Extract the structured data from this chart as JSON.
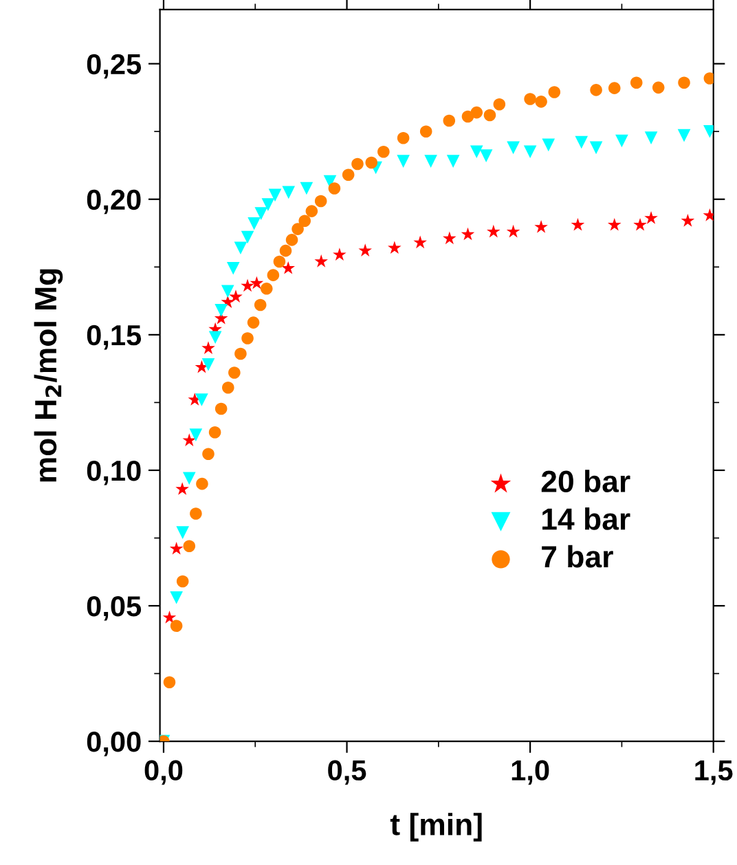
{
  "chart_data": {
    "type": "scatter",
    "xlabel": "t [min]",
    "ylabel": "mol H$_{2}$/mol Mg",
    "xlim": [
      -0.01,
      1.5
    ],
    "ylim": [
      0,
      0.27
    ],
    "xticks": [
      {
        "value": 0,
        "label": "0,0"
      },
      {
        "value": 0.5,
        "label": "0,5"
      },
      {
        "value": 1.0,
        "label": "1,0"
      },
      {
        "value": 1.5,
        "label": "1,5"
      }
    ],
    "yticks": [
      {
        "value": 0,
        "label": "0,00"
      },
      {
        "value": 0.05,
        "label": "0,05"
      },
      {
        "value": 0.1,
        "label": "0,10"
      },
      {
        "value": 0.15,
        "label": "0,15"
      },
      {
        "value": 0.2,
        "label": "0,20"
      },
      {
        "value": 0.25,
        "label": "0,25"
      }
    ],
    "grid": false,
    "legend": "right",
    "series": [
      {
        "name": "20 bar",
        "color": "#ff0000",
        "marker": "star",
        "x": [
          0.016,
          0.035,
          0.051,
          0.07,
          0.085,
          0.104,
          0.122,
          0.141,
          0.157,
          0.175,
          0.197,
          0.229,
          0.254,
          0.3,
          0.34,
          0.43,
          0.48,
          0.55,
          0.63,
          0.7,
          0.78,
          0.83,
          0.9,
          0.954,
          1.03,
          1.13,
          1.23,
          1.3,
          1.33,
          1.43,
          1.49
        ],
        "values": [
          0.0456,
          0.071,
          0.093,
          0.111,
          0.126,
          0.138,
          0.145,
          0.152,
          0.156,
          0.162,
          0.164,
          0.168,
          0.169,
          null,
          0.1745,
          0.177,
          0.1795,
          0.181,
          0.182,
          0.184,
          0.1855,
          0.187,
          0.188,
          0.188,
          0.1897,
          0.1905,
          0.1905,
          0.1905,
          0.193,
          0.192,
          0.194
        ]
      },
      {
        "name": "14 bar",
        "color": "#00ffff",
        "marker": "triangle",
        "x": [
          0,
          0.016,
          0.035,
          0.052,
          0.07,
          0.088,
          0.104,
          0.122,
          0.141,
          0.157,
          0.175,
          0.19,
          0.21,
          0.229,
          0.247,
          0.266,
          0.285,
          0.304,
          0.341,
          0.39,
          0.454,
          0.516,
          0.579,
          0.654,
          0.729,
          0.79,
          0.854,
          0.88,
          0.954,
          1.0,
          1.05,
          1.14,
          1.18,
          1.25,
          1.33,
          1.42,
          1.49
        ],
        "values": [
          0,
          null,
          0.053,
          0.077,
          0.097,
          0.113,
          0.126,
          0.139,
          0.149,
          0.159,
          0.166,
          0.1745,
          0.182,
          0.186,
          0.191,
          0.1947,
          0.198,
          0.2015,
          0.2025,
          0.204,
          0.2065,
          null,
          0.2116,
          0.214,
          0.214,
          0.214,
          0.2175,
          0.216,
          0.219,
          0.2175,
          0.22,
          0.221,
          0.219,
          0.2215,
          0.2226,
          0.2235,
          0.225
        ]
      },
      {
        "name": "7 bar",
        "color": "#ff8000",
        "marker": "circle",
        "x": [
          0,
          0.016,
          0.035,
          0.052,
          0.07,
          0.088,
          0.105,
          0.122,
          0.14,
          0.157,
          0.176,
          0.193,
          0.21,
          0.229,
          0.245,
          0.264,
          0.281,
          0.299,
          0.316,
          0.333,
          0.35,
          0.366,
          0.385,
          0.404,
          0.429,
          0.466,
          0.504,
          0.529,
          0.567,
          0.6,
          0.654,
          0.716,
          0.779,
          0.83,
          0.854,
          0.89,
          0.916,
          1.0,
          1.03,
          1.066,
          1.18,
          1.23,
          1.29,
          1.35,
          1.42,
          1.49
        ],
        "values": [
          0,
          0.0218,
          0.0426,
          0.059,
          0.072,
          0.084,
          0.095,
          0.106,
          0.114,
          0.1227,
          0.1305,
          0.136,
          0.143,
          0.1487,
          0.1545,
          0.161,
          0.167,
          0.172,
          0.177,
          0.181,
          0.185,
          0.189,
          0.192,
          0.1956,
          0.1993,
          0.204,
          0.209,
          0.213,
          0.2135,
          0.2175,
          0.2226,
          0.225,
          0.229,
          0.2305,
          0.232,
          0.231,
          0.235,
          0.237,
          0.236,
          0.2395,
          0.2403,
          0.241,
          0.243,
          0.2412,
          0.243,
          0.2446
        ]
      }
    ]
  }
}
